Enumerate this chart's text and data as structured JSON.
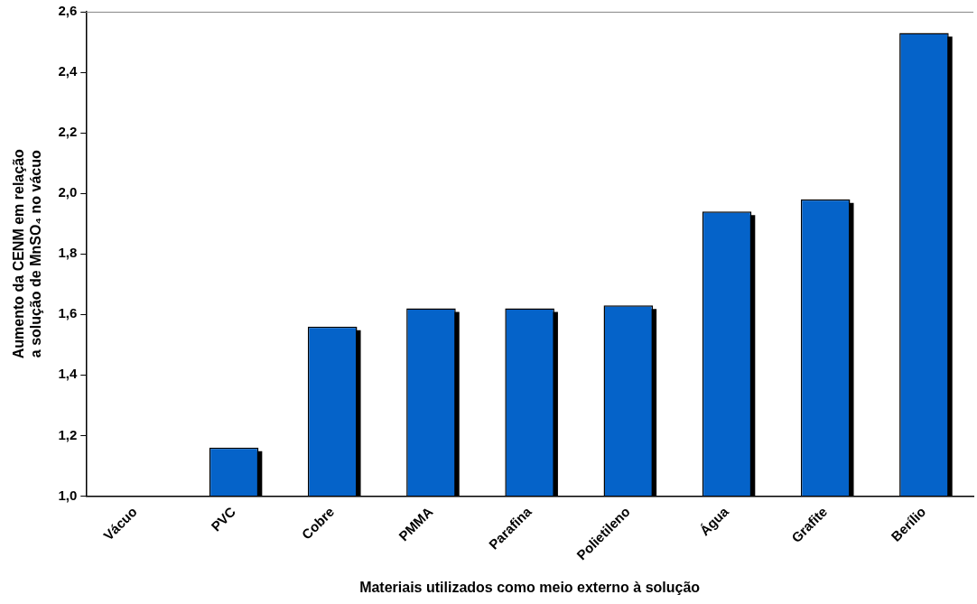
{
  "chart_data": {
    "type": "bar",
    "xlabel": "Materiais utilizados como meio externo à solução",
    "ylabel": "Aumento da CENM em relação\na solução de MnSO₄ no vácuo",
    "categories": [
      "Vácuo",
      "PVC",
      "Cobre",
      "PMMA",
      "Parafina",
      "Polietileno",
      "Água",
      "Grafite",
      "Berílio"
    ],
    "values": [
      1.0,
      1.16,
      1.56,
      1.62,
      1.62,
      1.63,
      1.94,
      1.98,
      2.53
    ],
    "color": "#0563c9",
    "ylim": [
      1.0,
      2.6
    ],
    "yticks": [
      {
        "value": 1.0,
        "label": "1,0"
      },
      {
        "value": 1.2,
        "label": "1,2"
      },
      {
        "value": 1.4,
        "label": "1,4"
      },
      {
        "value": 1.6,
        "label": "1,6"
      },
      {
        "value": 1.8,
        "label": "1,8"
      },
      {
        "value": 2.0,
        "label": "2,0"
      },
      {
        "value": 2.2,
        "label": "2,2"
      },
      {
        "value": 2.4,
        "label": "2,4"
      },
      {
        "value": 2.6,
        "label": "2,6"
      }
    ],
    "grid": false,
    "legend": false
  }
}
